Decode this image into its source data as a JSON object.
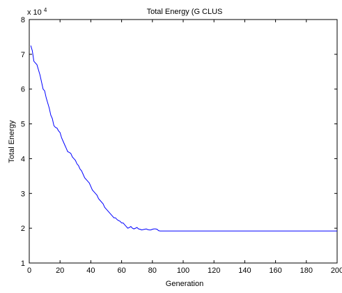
{
  "chart_data": {
    "type": "line",
    "title": "Total Energy (G CLUS",
    "xlabel": "Generation",
    "ylabel": "Total Energy",
    "y_exponent_prefix": "x 10",
    "y_exponent_power": "4",
    "xlim": [
      0,
      200
    ],
    "ylim": [
      1,
      8
    ],
    "xticks": [
      0,
      20,
      40,
      60,
      80,
      100,
      120,
      140,
      160,
      180,
      200
    ],
    "yticks": [
      1,
      2,
      3,
      4,
      5,
      6,
      7,
      8
    ],
    "grid": false,
    "line_color": "#0000ff",
    "series": [
      {
        "x": [
          1,
          2,
          3,
          4,
          5,
          6,
          7,
          8,
          9,
          10,
          11,
          12,
          13,
          14,
          15,
          16,
          17,
          18,
          19,
          20,
          21,
          22,
          23,
          24,
          25,
          26,
          27,
          28,
          29,
          30,
          31,
          32,
          33,
          34,
          35,
          36,
          37,
          38,
          39,
          40,
          41,
          42,
          43,
          44,
          45,
          46,
          47,
          48,
          49,
          50,
          51,
          52,
          53,
          54,
          55,
          56,
          57,
          58,
          59,
          60,
          61,
          62,
          63,
          64,
          65,
          66,
          67,
          68,
          69,
          70,
          71,
          72,
          73,
          74,
          75,
          76,
          77,
          78,
          79,
          80,
          81,
          82,
          83,
          84,
          85,
          86,
          200
        ],
        "y": [
          7.25,
          7.1,
          6.8,
          6.75,
          6.7,
          6.55,
          6.4,
          6.2,
          6.0,
          5.95,
          5.75,
          5.6,
          5.45,
          5.25,
          5.15,
          4.95,
          4.9,
          4.88,
          4.8,
          4.75,
          4.6,
          4.5,
          4.4,
          4.3,
          4.2,
          4.18,
          4.15,
          4.05,
          4.0,
          3.95,
          3.85,
          3.8,
          3.7,
          3.65,
          3.55,
          3.45,
          3.4,
          3.35,
          3.3,
          3.2,
          3.1,
          3.05,
          3.0,
          2.95,
          2.85,
          2.8,
          2.75,
          2.7,
          2.6,
          2.55,
          2.5,
          2.45,
          2.4,
          2.35,
          2.3,
          2.3,
          2.25,
          2.22,
          2.2,
          2.15,
          2.15,
          2.1,
          2.05,
          2.0,
          2.02,
          2.05,
          2.0,
          1.98,
          2.0,
          2.02,
          1.98,
          1.97,
          1.95,
          1.96,
          1.97,
          1.98,
          1.96,
          1.95,
          1.95,
          1.97,
          1.98,
          1.98,
          1.97,
          1.93,
          1.92,
          1.92,
          1.92
        ]
      }
    ]
  }
}
